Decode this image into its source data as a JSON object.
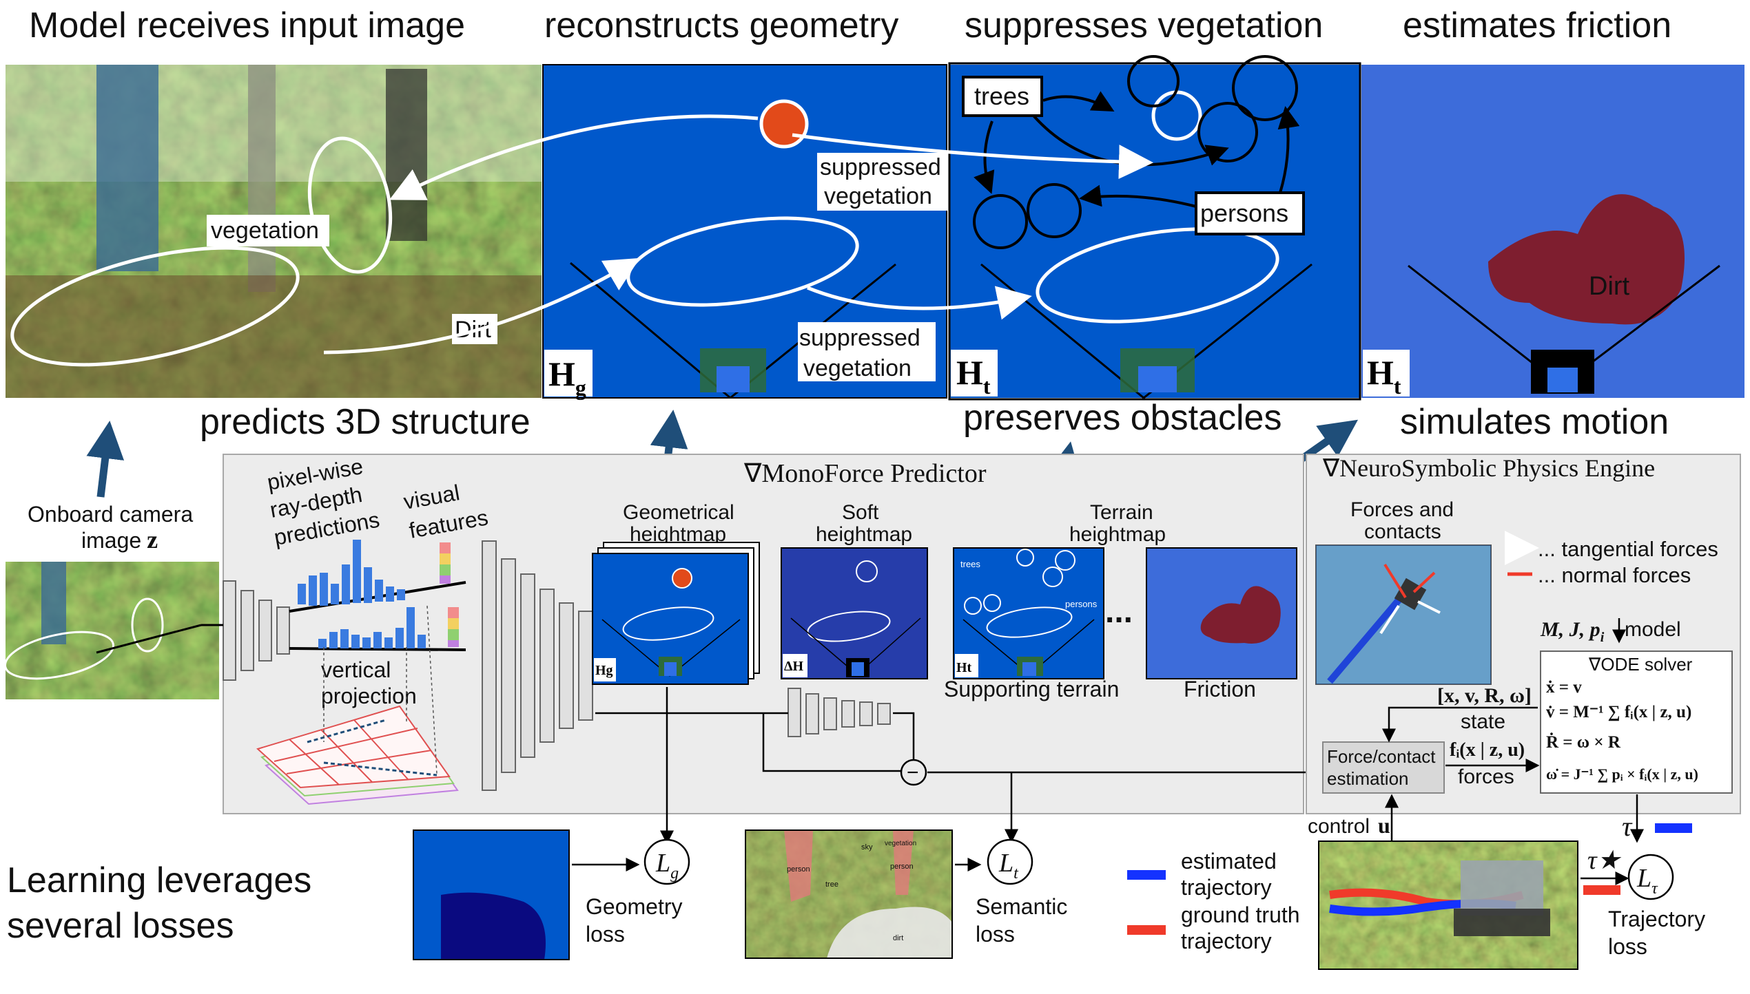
{
  "top_titles": {
    "input": "Model receives input image",
    "geometry": "reconstructs geometry",
    "vegetation": "suppresses vegetation",
    "friction": "estimates friction"
  },
  "mid_titles": {
    "structure": "predicts 3D structure",
    "obstacles": "preserves obstacles",
    "motion": "simulates motion"
  },
  "photo_labels": {
    "vegetation": "vegetation",
    "dirt": "Dirt"
  },
  "map_labels": {
    "suppressed_1_line1": "suppressed",
    "suppressed_1_line2": "vegetation",
    "suppressed_2_line1": "suppressed",
    "suppressed_2_line2": "vegetation",
    "trees": "trees",
    "persons": "persons",
    "dirt": "Dirt"
  },
  "map_symbols": {
    "hg_main": "H",
    "hg_sub": "g",
    "ht_main": "H",
    "ht_sub": "t"
  },
  "camera": {
    "line1": "Onboard camera",
    "line2": "image",
    "symbol": "z"
  },
  "monoforce": {
    "title": "∇MonoForce Predictor",
    "pixelwise": [
      "pixel-wise",
      "ray-depth",
      "predictions"
    ],
    "visual": [
      "visual",
      "features"
    ],
    "vertical": [
      "vertical",
      "projection"
    ],
    "geom_hm": [
      "Geometrical",
      "heightmap"
    ],
    "soft_hm": [
      "Soft",
      "heightmap"
    ],
    "terrain_hm": [
      "Terrain",
      "heightmap"
    ],
    "supporting": "Supporting terrain",
    "friction": "Friction",
    "ellipsis": "...",
    "minus": "−",
    "small_trees": "trees",
    "small_persons": "persons",
    "small_hg": "Hg",
    "small_dh": "ΔH",
    "small_ht": "Ht"
  },
  "physics": {
    "title": "∇NeuroSymbolic Physics Engine",
    "forces_contacts": [
      "Forces and",
      "contacts"
    ],
    "tangential": "... tangential forces",
    "normal": "... normal forces",
    "model_vars": "M, J, p",
    "model_sub": "i",
    "model": "model",
    "ode": "∇ODE solver",
    "eq1": "ẋ = v",
    "eq2": "v̇ = M⁻¹ ∑ fᵢ(x | z, u)",
    "eq3": "Ṙ = ω × R",
    "eq4": "ω̇ = J⁻¹ ∑ pᵢ × fᵢ(x | z, u)",
    "state_vec": "[x, v, R, ω]",
    "state": "state",
    "forces_sym": "fᵢ(x | z, u)",
    "forces": "forces",
    "fc_est": [
      "Force/contact",
      "estimation"
    ],
    "control": "control",
    "u": "u",
    "tau": "τ",
    "tau_star": "τ★"
  },
  "losses": {
    "heading": [
      "Learning leverages",
      "several losses"
    ],
    "geometry": [
      "Geometry",
      "loss"
    ],
    "semantic": [
      "Semantic",
      "loss"
    ],
    "trajectory": [
      "Trajectory",
      "loss"
    ],
    "Lg": "L",
    "Lg_sub": "g",
    "Lt": "L",
    "Lt_sub": "t",
    "Ltau": "L",
    "Ltau_sub": "τ",
    "seg_person1": "person",
    "seg_person2": "person",
    "seg_tree": "tree",
    "seg_sky": "sky",
    "seg_vegetation": "vegetation",
    "seg_dirt": "dirt"
  },
  "legend": {
    "estimated": [
      "estimated",
      "trajectory"
    ],
    "ground_truth": [
      "ground truth",
      "trajectory"
    ]
  },
  "colors": {
    "arrow_blue": "#1f4e79",
    "estimated": "#1432ff",
    "ground_truth": "#f03a2a",
    "panel_bg": "#ececec",
    "robot": "#2f6fe6"
  }
}
